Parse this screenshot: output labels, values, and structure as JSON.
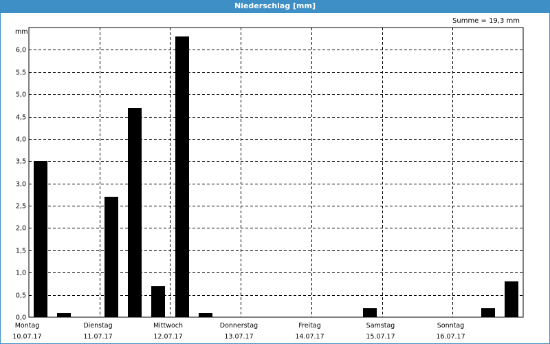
{
  "window": {
    "title": "Niederschlag [mm]"
  },
  "summary": {
    "text": "Summe = 19,3 mm"
  },
  "colors": {
    "titlebar": "#3d8fc5",
    "bar": "#000000",
    "grid": "#000000"
  },
  "chart_data": {
    "type": "bar",
    "title": "Niederschlag [mm]",
    "ylabel": "mm",
    "ylim": [
      0,
      6.5
    ],
    "y_ticks": [
      0.0,
      0.5,
      1.0,
      1.5,
      2.0,
      2.5,
      3.0,
      3.5,
      4.0,
      4.5,
      5.0,
      5.5,
      6.0
    ],
    "y_tick_labels": [
      "0,0",
      "0,5",
      "1,0",
      "1,5",
      "2,0",
      "2,5",
      "3,0",
      "3,5",
      "4,0",
      "4,5",
      "5,0",
      "5,5",
      "6,0"
    ],
    "x_ticks": [
      {
        "day": "Montag",
        "date": "10.07.17"
      },
      {
        "day": "Dienstag",
        "date": "11.07.17"
      },
      {
        "day": "Mittwoch",
        "date": "12.07.17"
      },
      {
        "day": "Donnerstag",
        "date": "13.07.17"
      },
      {
        "day": "Freitag",
        "date": "14.07.17"
      },
      {
        "day": "Samstag",
        "date": "15.07.17"
      },
      {
        "day": "Sonntag",
        "date": "16.07.17"
      }
    ],
    "interval_hours": 8,
    "values": [
      3.5,
      0.1,
      0,
      2.7,
      4.7,
      0.7,
      6.3,
      0.1,
      0,
      0,
      0,
      0,
      0,
      0,
      0.2,
      0,
      0,
      0,
      0,
      0.2,
      0.8
    ],
    "grid": true,
    "summary": "Summe = 19,3 mm"
  }
}
